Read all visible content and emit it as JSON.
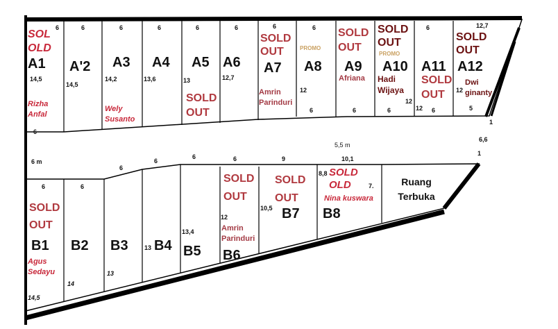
{
  "colors": {
    "sold": "#b0393f",
    "sold_dark": "#6b1111",
    "owner": "#c8283a",
    "promo": "#c9a060",
    "line": "#000000"
  },
  "block_a": {
    "lots": [
      {
        "label": "A1",
        "width": "6",
        "depth": "14,5",
        "bottom": "6",
        "status": "SOL OLD",
        "owner": "Rizha Anfal"
      },
      {
        "label": "A'2",
        "width": "6",
        "depth": "14,5"
      },
      {
        "label": "A3",
        "width": "6",
        "depth": "14,2",
        "owner": "Wely Susanto"
      },
      {
        "label": "A4",
        "width": "6",
        "depth": "13,6"
      },
      {
        "label": "A5",
        "width": "6",
        "depth": "13",
        "status": "SOLD OUT"
      },
      {
        "label": "A6",
        "width": "6",
        "depth": "12,7"
      },
      {
        "label": "A7",
        "width": "6",
        "status": "SOLD OUT",
        "owner": "Amrin Parinduri"
      },
      {
        "label": "A8",
        "width": "6",
        "depth": "12",
        "bottom": "6",
        "promo": "PROMO"
      },
      {
        "label": "A9",
        "bottom": "6",
        "status": "SOLD OUT",
        "owner": "Afriana"
      },
      {
        "label": "A10",
        "depth": "12",
        "bottom": "6",
        "status": "SOLD OUT",
        "promo": "PROMO",
        "owner": "Hadi Wijaya"
      },
      {
        "label": "A11",
        "width": "6",
        "depth": "12",
        "bottom": "6",
        "status": "SOLD OUT"
      },
      {
        "label": "A12",
        "width": "12,7",
        "depth": "12",
        "bottom": "5",
        "status": "SOLD OUT",
        "owner": "Dwi ginanty"
      }
    ]
  },
  "road": {
    "width_left": "6 m",
    "width_mid": "5,5 m",
    "right_a": "1",
    "right_mid": "6,6",
    "right_b": "1"
  },
  "block_b": {
    "top_dims": [
      "6",
      "6",
      "6",
      "6",
      "9",
      "10,1"
    ],
    "lots": [
      {
        "label": "B1",
        "width": "6",
        "depth": "14,5",
        "status": "SOLD OUT",
        "owner": "Agus Sedayu"
      },
      {
        "label": "B2",
        "width": "6",
        "depth": "14"
      },
      {
        "label": "B3",
        "depth": "13"
      },
      {
        "label": "B4",
        "depth": "13"
      },
      {
        "label": "B5",
        "depth": "13,4"
      },
      {
        "label": "B6",
        "depth": "12",
        "status": "SOLD OUT",
        "owner": "Amrin Parinduri"
      },
      {
        "label": "B7",
        "depth": "10,5",
        "status": "SOLD OUT"
      },
      {
        "label": "B8",
        "depth": "8,8",
        "side": "7.",
        "status": "SOLD OLD",
        "owner": "Nina kuswara"
      }
    ],
    "open_space": "Ruang Terbuka"
  }
}
